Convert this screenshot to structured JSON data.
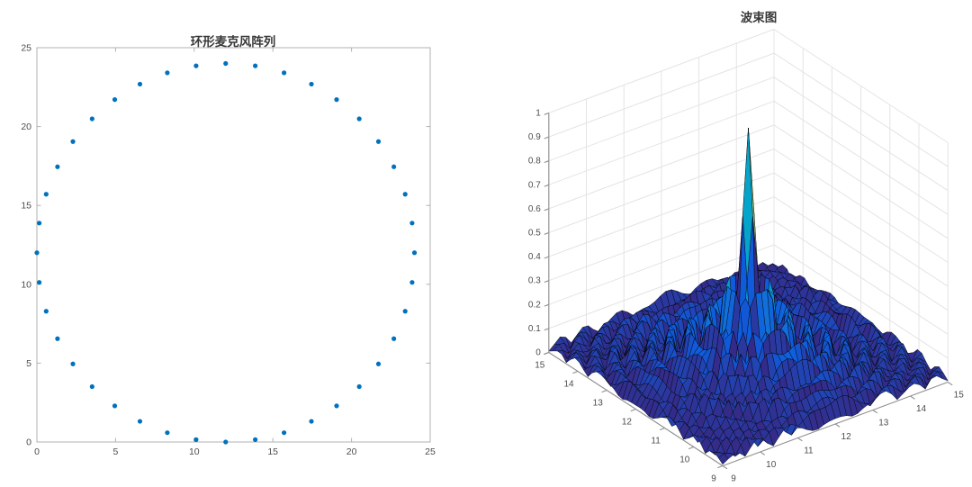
{
  "figure": {
    "background": "#ffffff"
  },
  "chart_data": [
    {
      "type": "scatter",
      "title": "环形麦克风阵列",
      "xlabel": "",
      "ylabel": "",
      "xlim": [
        0,
        25
      ],
      "ylim": [
        0,
        25
      ],
      "xticks": [
        0,
        5,
        10,
        15,
        20,
        25
      ],
      "yticks": [
        0,
        5,
        10,
        15,
        20,
        25
      ],
      "grid": "off",
      "box": "on",
      "marker": "filled-circle",
      "marker_color": "#0072BD",
      "marker_radius_px": 2.6,
      "axis_color": "#b2b2b2",
      "tick_label_color": "#4d4d4d",
      "description": "40 microphones evenly spaced every 9 degrees on a circle, center (12,12), radius 12",
      "points": [
        [
          24,
          12
        ],
        [
          23.85,
          13.88
        ],
        [
          23.41,
          15.71
        ],
        [
          22.69,
          17.45
        ],
        [
          21.71,
          19.05
        ],
        [
          20.49,
          20.49
        ],
        [
          19.05,
          21.71
        ],
        [
          17.45,
          22.69
        ],
        [
          15.71,
          23.41
        ],
        [
          13.88,
          23.85
        ],
        [
          12,
          24
        ],
        [
          10.12,
          23.85
        ],
        [
          8.29,
          23.41
        ],
        [
          6.55,
          22.69
        ],
        [
          4.95,
          21.71
        ],
        [
          3.51,
          20.49
        ],
        [
          2.29,
          19.05
        ],
        [
          1.31,
          17.45
        ],
        [
          0.59,
          15.71
        ],
        [
          0.15,
          13.88
        ],
        [
          0,
          12
        ],
        [
          0.15,
          10.12
        ],
        [
          0.59,
          8.29
        ],
        [
          1.31,
          6.55
        ],
        [
          2.29,
          4.95
        ],
        [
          3.51,
          3.51
        ],
        [
          4.95,
          2.29
        ],
        [
          6.55,
          1.31
        ],
        [
          8.29,
          0.59
        ],
        [
          10.12,
          0.15
        ],
        [
          12,
          0
        ],
        [
          13.88,
          0.15
        ],
        [
          15.71,
          0.59
        ],
        [
          17.45,
          1.31
        ],
        [
          19.05,
          2.29
        ],
        [
          20.49,
          3.51
        ],
        [
          21.71,
          4.95
        ],
        [
          22.69,
          6.55
        ],
        [
          23.41,
          8.29
        ],
        [
          23.85,
          10.12
        ]
      ]
    },
    {
      "type": "surface",
      "title": "波束图",
      "xlabel": "",
      "ylabel": "",
      "zlabel": "",
      "xlim": [
        9,
        15
      ],
      "ylim": [
        9,
        15
      ],
      "zlim": [
        0,
        1
      ],
      "xticks": [
        9,
        10,
        11,
        12,
        13,
        14,
        15
      ],
      "yticks": [
        9,
        10,
        11,
        12,
        13,
        14,
        15
      ],
      "zticks": [
        0,
        0.1,
        0.2,
        0.3,
        0.4,
        0.5,
        0.6,
        0.7,
        0.8,
        0.9,
        1
      ],
      "grid": "on",
      "grid_n": 41,
      "peak": {
        "x": 12,
        "y": 12,
        "z": 1.0
      },
      "beam_model": {
        "formula": "z = |J0(alpha*r)| * exp(-damp*r), r = distance to beam focus (12,12), with mild angular ripple on sidelobes",
        "alpha": 8,
        "damp": 0.3,
        "ripple_amp": 0.28
      },
      "colormap": "parula",
      "colormap_stops": [
        [
          0,
          "#352a87"
        ],
        [
          0.125,
          "#0f5cdd"
        ],
        [
          0.25,
          "#1481d6"
        ],
        [
          0.375,
          "#06a4ca"
        ],
        [
          0.5,
          "#2eb7a4"
        ],
        [
          0.625,
          "#87bf77"
        ],
        [
          0.75,
          "#d1bb59"
        ],
        [
          0.875,
          "#fec832"
        ],
        [
          1,
          "#f9fb0e"
        ]
      ],
      "edge_color": "#000000",
      "wall_grid_color": "#e4e4e4",
      "axis_color": "#8f8f8f",
      "tick_label_color": "#4d4d4d"
    }
  ]
}
